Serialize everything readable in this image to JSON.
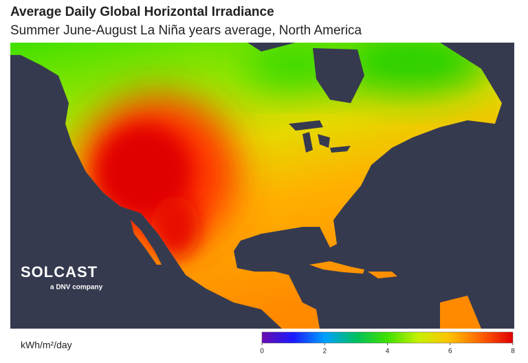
{
  "title": "Average Daily Global Horizontal Irradiance",
  "subtitle": "Summer June-August La Niña years average, North America",
  "logo": {
    "name": "SOLCAST",
    "tagline": "a DNV company"
  },
  "legend": {
    "label": "kWh/m²/day",
    "range": [
      0,
      8
    ],
    "ticks": [
      0,
      2,
      4,
      6,
      8
    ],
    "colors": [
      "#6a0dad",
      "#1a1aff",
      "#00a0ff",
      "#00c060",
      "#40e000",
      "#c8f000",
      "#ffc000",
      "#ff6000",
      "#e00000"
    ]
  }
}
